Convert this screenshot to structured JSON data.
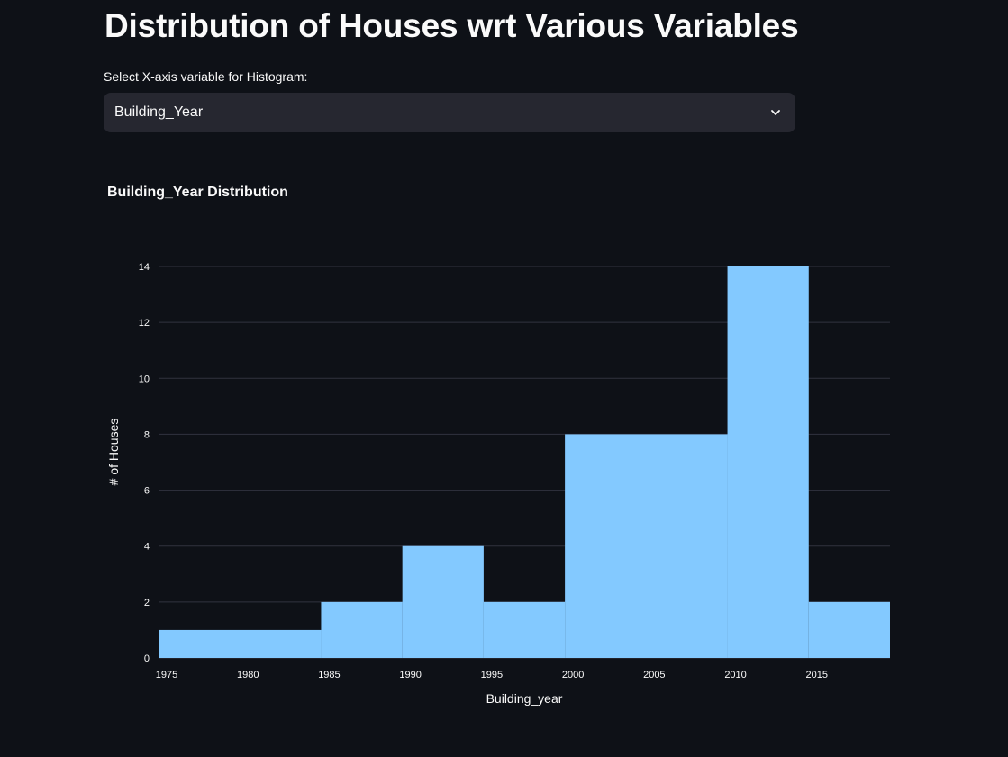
{
  "page": {
    "title": "Distribution of Houses wrt Various Variables"
  },
  "selector": {
    "label": "Select X-axis variable for Histogram:",
    "value": "Building_Year",
    "icon": "chevron-down-icon"
  },
  "colors": {
    "background": "#0e1117",
    "bar": "#83c9ff",
    "grid": "#31333f",
    "select_bg": "#262730"
  },
  "chart_data": {
    "type": "bar",
    "title": "Building_Year Distribution",
    "xlabel": "Building_year",
    "ylabel": "# of Houses",
    "bins": [
      {
        "start": 1975,
        "end": 1985,
        "count": 1
      },
      {
        "start": 1985,
        "end": 1990,
        "count": 2
      },
      {
        "start": 1990,
        "end": 1995,
        "count": 4
      },
      {
        "start": 1995,
        "end": 2000,
        "count": 2
      },
      {
        "start": 2000,
        "end": 2010,
        "count": 8
      },
      {
        "start": 2010,
        "end": 2015,
        "count": 14
      },
      {
        "start": 2015,
        "end": 2020,
        "count": 2
      }
    ],
    "xlim": [
      1975,
      2020
    ],
    "ylim": [
      0,
      14
    ],
    "x_ticks": [
      "1975",
      "1980",
      "1985",
      "1990",
      "1995",
      "2000",
      "2005",
      "2010",
      "2015"
    ],
    "y_ticks": [
      "0",
      "2",
      "4",
      "6",
      "8",
      "10",
      "12",
      "14"
    ],
    "grid": true
  }
}
